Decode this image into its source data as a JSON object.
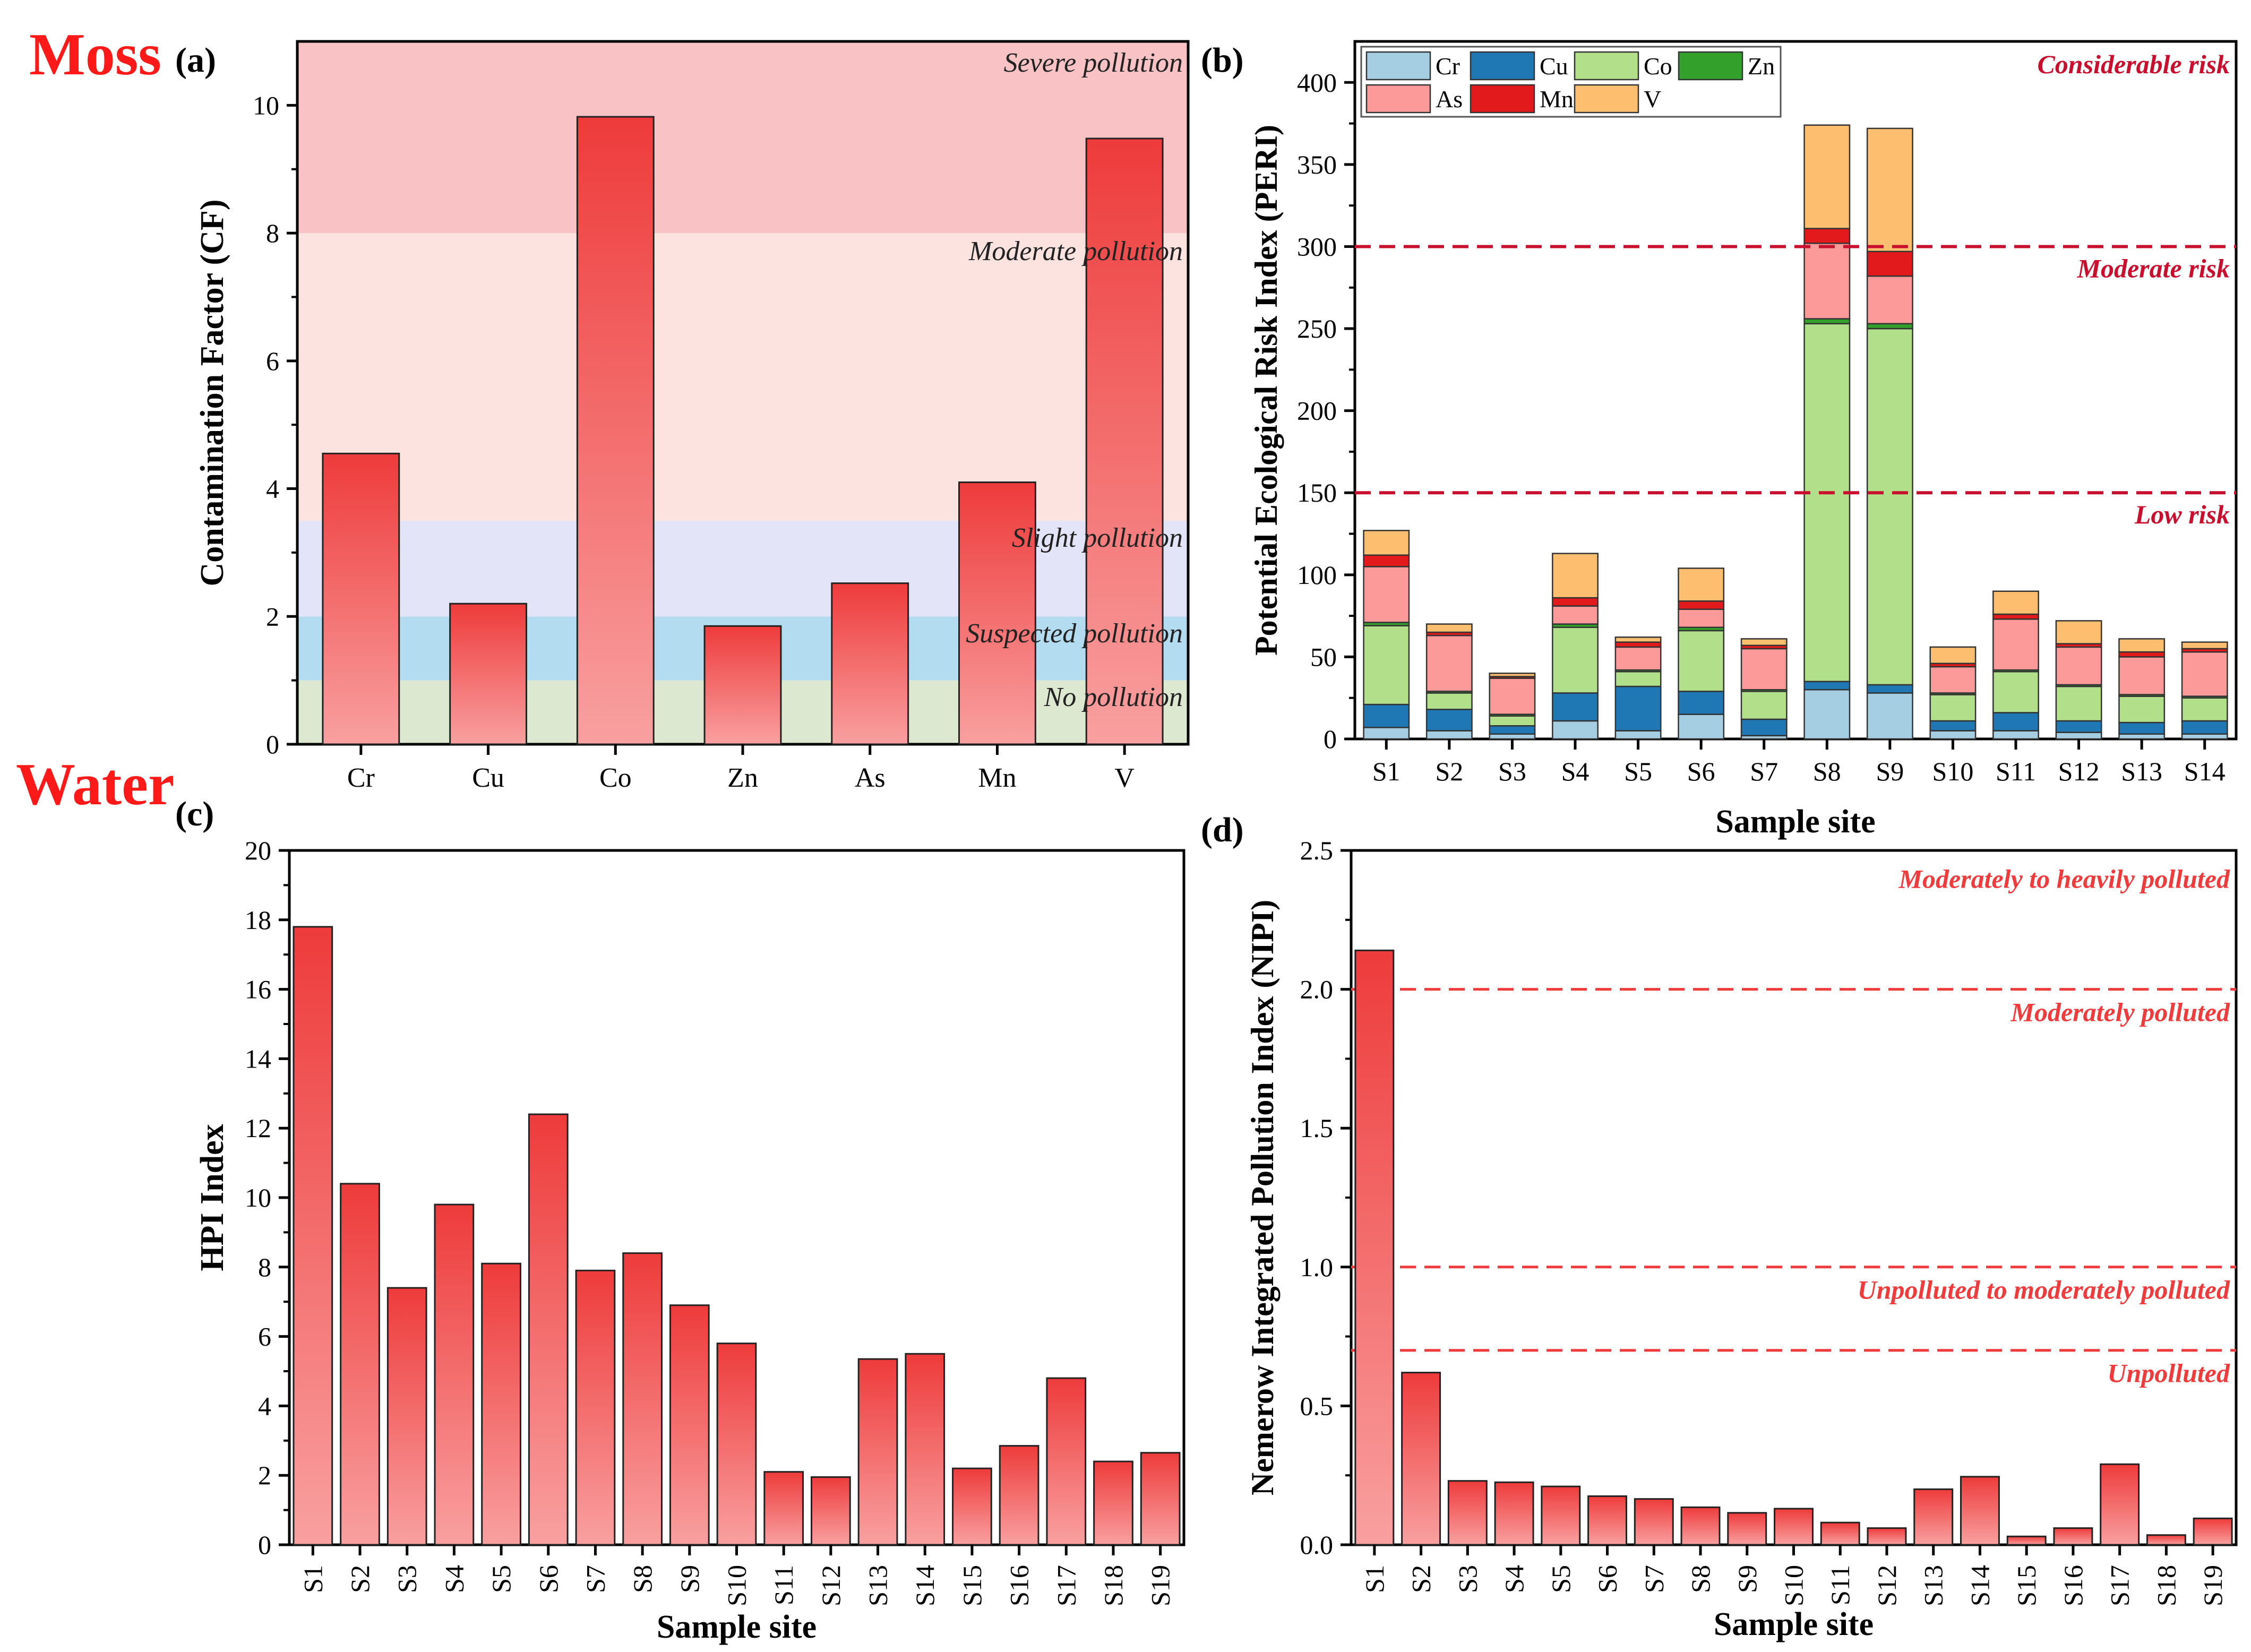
{
  "sections": {
    "moss": "Moss",
    "water": "Water"
  },
  "colors": {
    "bar_top": "#ee3b3b",
    "bar_bottom": "#f9a0a0",
    "red_text": "#c8102e",
    "light_red": "#ee3b3b"
  },
  "chart_data": [
    {
      "id": "a",
      "panel_label": "(a)",
      "type": "bar",
      "title": "",
      "xlabel": "",
      "ylabel": "Contamination Factor (CF)",
      "categories": [
        "Cr",
        "Cu",
        "Co",
        "Zn",
        "As",
        "Mn",
        "V"
      ],
      "values": [
        4.55,
        2.2,
        9.82,
        1.85,
        2.52,
        4.1,
        9.48
      ],
      "ylim": [
        0,
        11
      ],
      "yticks": [
        0,
        2,
        4,
        6,
        8,
        10
      ],
      "bands": [
        {
          "from": 0,
          "to": 1,
          "label": "No pollution",
          "color": "#dce8cf"
        },
        {
          "from": 1,
          "to": 2,
          "label": "Suspected pollution",
          "color": "#b3dcf0"
        },
        {
          "from": 2,
          "to": 3.5,
          "label": "Slight pollution",
          "color": "#e4e4f9"
        },
        {
          "from": 3.5,
          "to": 8,
          "label": "Moderate pollution",
          "color": "#fde3df"
        },
        {
          "from": 8,
          "to": 11,
          "label": "Severe pollution",
          "color": "#f9c3c5"
        }
      ]
    },
    {
      "id": "b",
      "panel_label": "(b)",
      "type": "bar",
      "stacked": true,
      "title": "",
      "xlabel": "Sample site",
      "ylabel": "Potential Ecological Risk Index (PERI)",
      "categories": [
        "S1",
        "S2",
        "S3",
        "S4",
        "S5",
        "S6",
        "S7",
        "S8",
        "S9",
        "S10",
        "S11",
        "S12",
        "S13",
        "S14"
      ],
      "series": [
        {
          "name": "Cr",
          "color": "#a6cee3",
          "values": [
            7,
            5,
            3,
            11,
            5,
            15,
            2,
            30,
            28,
            5,
            5,
            4,
            3,
            3
          ]
        },
        {
          "name": "Cu",
          "color": "#1f78b4",
          "values": [
            14,
            13,
            5,
            17,
            27,
            14,
            10,
            5,
            5,
            6,
            11,
            7,
            7,
            8
          ]
        },
        {
          "name": "Co",
          "color": "#b2df8a",
          "values": [
            48,
            10,
            6,
            40,
            9,
            37,
            17,
            218,
            217,
            16,
            25,
            21,
            16,
            14
          ]
        },
        {
          "name": "Zn",
          "color": "#33a02c",
          "values": [
            2,
            1,
            1,
            2,
            1,
            2,
            1,
            3,
            3,
            1,
            1,
            1,
            1,
            1
          ]
        },
        {
          "name": "As",
          "color": "#fb9a99",
          "values": [
            34,
            34,
            22,
            11,
            14,
            11,
            25,
            46,
            29,
            16,
            31,
            23,
            23,
            27
          ]
        },
        {
          "name": "Mn",
          "color": "#e31a1c",
          "values": [
            7,
            2,
            1,
            5,
            3,
            5,
            2,
            9,
            15,
            2,
            3,
            2,
            3,
            2
          ]
        },
        {
          "name": "V",
          "color": "#fdbf6f",
          "values": [
            15,
            5,
            2,
            27,
            3,
            20,
            4,
            63,
            75,
            10,
            14,
            14,
            8,
            4
          ]
        }
      ],
      "ylim": [
        0,
        425
      ],
      "yticks": [
        0,
        50,
        100,
        150,
        200,
        250,
        300,
        350,
        400
      ],
      "thresholds": [
        {
          "value": 150,
          "label": "Low risk"
        },
        {
          "value": 300,
          "label": "Moderate risk"
        }
      ],
      "top_label": "Considerable risk",
      "legend_position": "top-left"
    },
    {
      "id": "c",
      "panel_label": "(c)",
      "type": "bar",
      "title": "",
      "xlabel": "Sample site",
      "ylabel": "HPI Index",
      "categories": [
        "S1",
        "S2",
        "S3",
        "S4",
        "S5",
        "S6",
        "S7",
        "S8",
        "S9",
        "S10",
        "S11",
        "S12",
        "S13",
        "S14",
        "S15",
        "S16",
        "S17",
        "S18",
        "S19"
      ],
      "values": [
        17.8,
        10.4,
        7.4,
        9.8,
        8.1,
        12.4,
        7.9,
        8.4,
        6.9,
        5.8,
        2.1,
        1.95,
        5.35,
        5.5,
        2.2,
        2.85,
        4.8,
        2.4,
        2.65
      ],
      "ylim": [
        0,
        20
      ],
      "yticks": [
        0,
        2,
        4,
        6,
        8,
        10,
        12,
        14,
        16,
        18,
        20
      ]
    },
    {
      "id": "d",
      "panel_label": "(d)",
      "type": "bar",
      "title": "",
      "xlabel": "Sample site",
      "ylabel": "Nemerow Integrated Pollution Index (NIPI)",
      "categories": [
        "S1",
        "S2",
        "S3",
        "S4",
        "S5",
        "S6",
        "S7",
        "S8",
        "S9",
        "S10",
        "S11",
        "S12",
        "S13",
        "S14",
        "S15",
        "S16",
        "S17",
        "S18",
        "S19"
      ],
      "values": [
        2.14,
        0.62,
        0.23,
        0.225,
        0.21,
        0.175,
        0.165,
        0.135,
        0.115,
        0.13,
        0.08,
        0.06,
        0.2,
        0.245,
        0.03,
        0.06,
        0.29,
        0.035,
        0.095
      ],
      "ylim": [
        0,
        2.5
      ],
      "yticks": [
        0.0,
        0.5,
        1.0,
        1.5,
        2.0,
        2.5
      ],
      "ytick_labels": [
        "0.0",
        "0.5",
        "1.0",
        "1.5",
        "2.0",
        "2.5"
      ],
      "thresholds": [
        0.7,
        1.0,
        2.0
      ],
      "zone_labels": [
        {
          "at": 2.4,
          "label": "Moderately to heavily polluted"
        },
        {
          "at": 1.92,
          "label": "Moderately polluted"
        },
        {
          "at": 0.92,
          "label": "Unpolluted to moderately polluted"
        },
        {
          "at": 0.62,
          "label": "Unpolluted"
        }
      ]
    }
  ]
}
